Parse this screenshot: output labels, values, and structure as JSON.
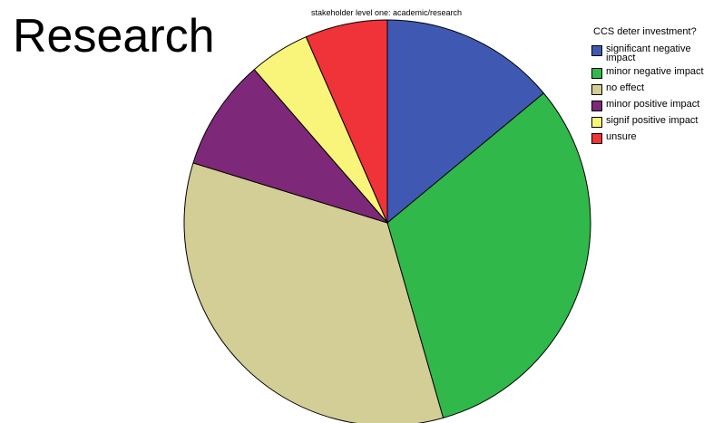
{
  "heading": "Research",
  "chart_data": {
    "type": "pie",
    "title": "stakeholder level one: academic/research",
    "legend_title": "CCS deter investment?",
    "legend_position": "right",
    "categories": [
      "significant negative impact",
      "minor negative impact",
      "no effect",
      "minor positive impact",
      "signif positive impact",
      "unsure"
    ],
    "values": [
      14.5,
      32.8,
      35.5,
      9.2,
      5.0,
      6.8
    ],
    "colors": [
      "#3f59b2",
      "#30b84a",
      "#d3cd96",
      "#7d2879",
      "#f8f57a",
      "#f03239"
    ]
  }
}
